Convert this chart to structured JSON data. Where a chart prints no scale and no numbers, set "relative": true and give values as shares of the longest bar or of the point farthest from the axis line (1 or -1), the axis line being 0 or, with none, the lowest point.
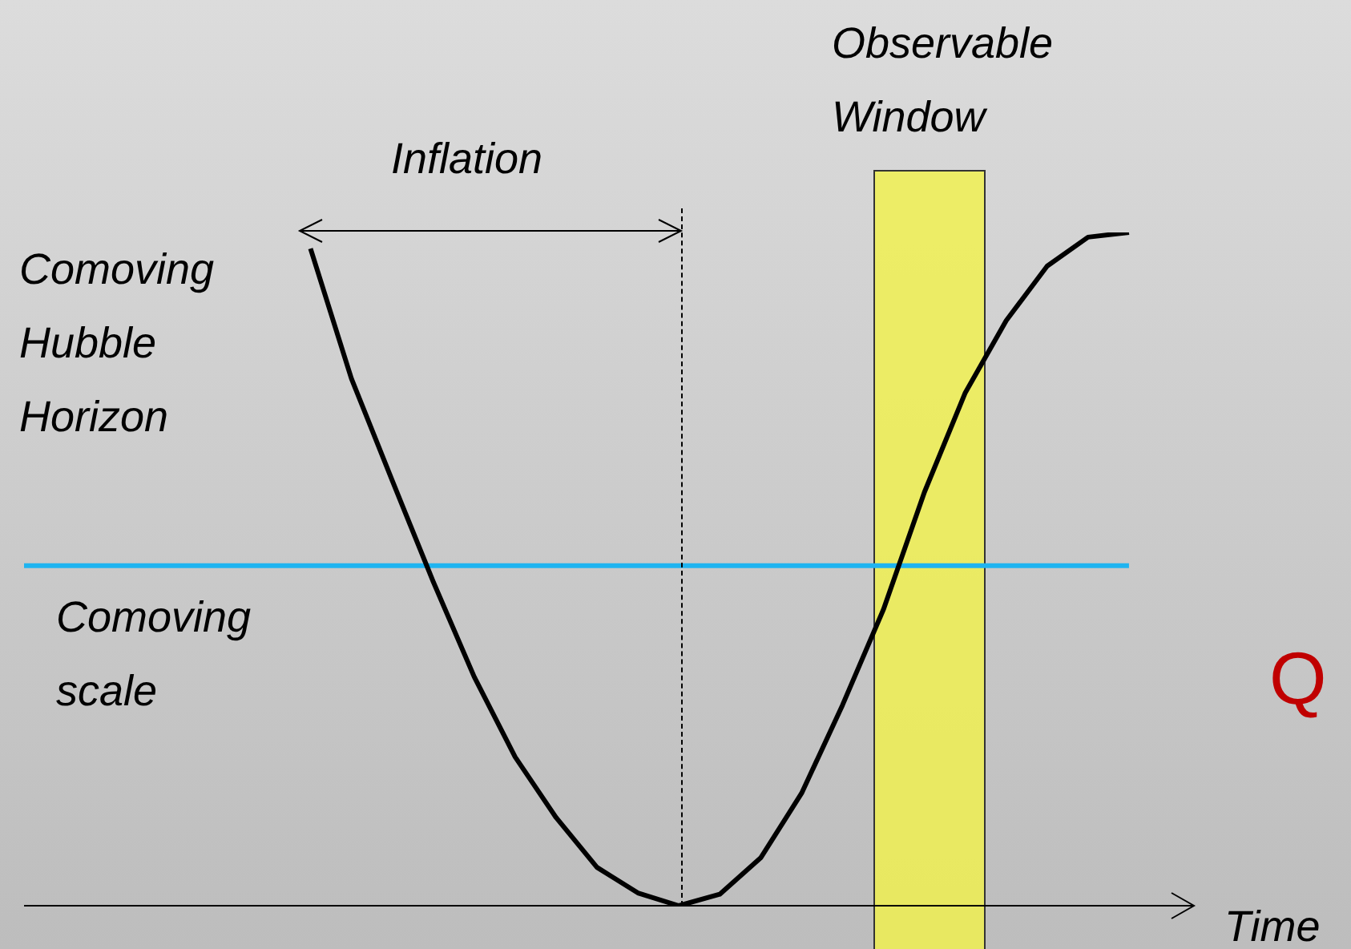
{
  "chart_data": {
    "type": "line",
    "relative": true,
    "xlabel": "Time",
    "tick_labels": false,
    "legend": false,
    "marker": "none",
    "categories": [
      null,
      null,
      null,
      null,
      null,
      null,
      null,
      null,
      null,
      null,
      null,
      null,
      null,
      null,
      null,
      null,
      null,
      null,
      null,
      null,
      null,
      null,
      null,
      null,
      null,
      null,
      null,
      null,
      null
    ],
    "series": [
      {
        "name": "Comoving Hubble Horizon",
        "color": "#000000",
        "values": [
          null,
          null,
          null,
          null,
          null,
          null,
          null,
          0.976,
          0.783,
          0.631,
          0.481,
          0.34,
          0.221,
          0.131,
          0.057,
          0.019,
          0,
          0.017,
          0.071,
          0.167,
          0.298,
          0.44,
          0.614,
          0.762,
          0.869,
          0.95,
          0.993,
          1,
          null
        ]
      },
      {
        "name": "Comoving scale",
        "color": "#1fb4f0",
        "values": [
          0.505,
          0.505,
          0.505,
          0.505,
          0.505,
          0.505,
          0.505,
          0.505,
          0.505,
          0.505,
          0.505,
          0.505,
          0.505,
          0.505,
          0.505,
          0.505,
          0.505,
          0.505,
          0.505,
          0.505,
          0.505,
          0.505,
          0.505,
          0.505,
          0.505,
          0.505,
          0.505,
          0.505,
          null
        ]
      }
    ],
    "annotations": [
      "Inflation",
      "Observable Window",
      "Q"
    ]
  }
}
